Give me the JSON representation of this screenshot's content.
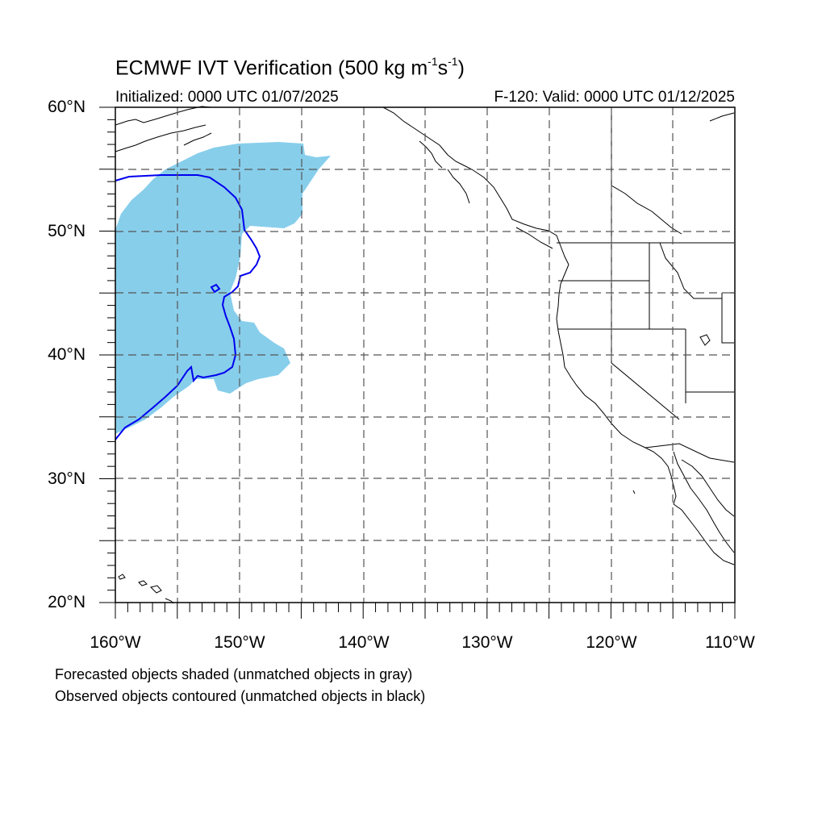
{
  "title_main": "ECMWF IVT Verification (500 kg m",
  "title_exp1": "-1",
  "title_mid": "s",
  "title_exp2": "-1",
  "title_end": ")",
  "initialized": "Initialized: 0000 UTC 01/07/2025",
  "valid": "F-120: Valid: 0000 UTC 01/12/2025",
  "lat_labels": [
    "60°N",
    "50°N",
    "40°N",
    "30°N",
    "20°N"
  ],
  "lon_labels": [
    "160°W",
    "150°W",
    "140°W",
    "130°W",
    "120°W",
    "110°W"
  ],
  "note_forecast": "Forecasted objects shaded (unmatched objects in gray)",
  "note_observed": "Observed objects contoured (unmatched objects in black)",
  "colors": {
    "forecast_fill": "#87ceeb",
    "observed_contour": "#0000ee",
    "coastline": "#000000",
    "grid": "#555555"
  },
  "map_extent": {
    "lon": [
      -160,
      -110
    ],
    "lat": [
      20,
      60
    ]
  }
}
